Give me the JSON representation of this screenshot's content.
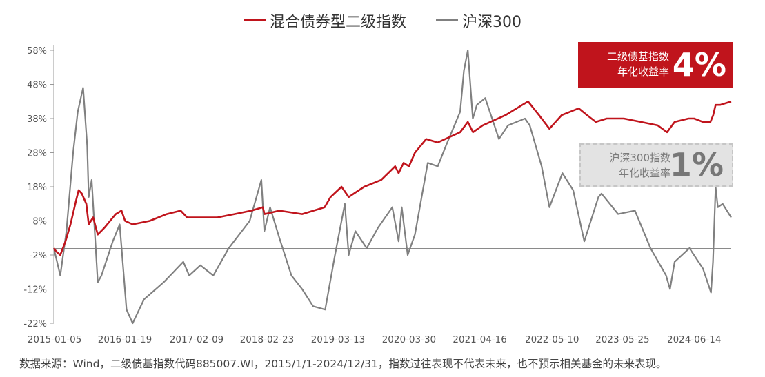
{
  "legend": [
    {
      "name": "混合债券型二级指数",
      "color": "#c0141c"
    },
    {
      "name": "沪深300",
      "color": "#808080"
    }
  ],
  "callouts": {
    "bond": {
      "label_line1": "二级债基指数",
      "label_line2": "年化收益率",
      "value": "4%",
      "bg": "#c0141c"
    },
    "csi": {
      "label_line1": "沪深300指数",
      "label_line2": "年化收益率",
      "value": "1%",
      "bg": "#e3e3e3"
    }
  },
  "footnote": "数据来源：Wind，二级债基指数代码885007.WI，2015/1/1-2024/12/31，指数过往表现不代表未来，也不预示相关基金的未来表现。",
  "chart_data": {
    "type": "line",
    "title": "",
    "xlabel": "",
    "ylabel": "",
    "ylim": [
      -22,
      58
    ],
    "xlim": [
      "2015-01-01",
      "2024-12-31"
    ],
    "y_ticks": [
      -22,
      -12,
      -2,
      8,
      18,
      28,
      38,
      48,
      58
    ],
    "y_tick_labels": [
      "-22%",
      "-12%",
      "-2%",
      "8%",
      "18%",
      "28%",
      "38%",
      "48%",
      "58%"
    ],
    "x_tick_labels": [
      "2015-01-05",
      "2016-01-19",
      "2017-02-09",
      "2018-02-23",
      "2019-03-13",
      "2020-03-30",
      "2021-04-16",
      "2022-05-10",
      "2023-05-25",
      "2024-06-14"
    ],
    "grid": false,
    "legend_position": "top-center",
    "series": [
      {
        "name": "混合债券型二级指数",
        "color": "#c0141c",
        "points": [
          [
            "2015-01-01",
            0
          ],
          [
            "2015-01-15",
            -1
          ],
          [
            "2015-02-05",
            -2
          ],
          [
            "2015-03-05",
            2
          ],
          [
            "2015-04-01",
            7
          ],
          [
            "2015-05-01",
            14
          ],
          [
            "2015-05-15",
            17
          ],
          [
            "2015-06-01",
            16
          ],
          [
            "2015-06-25",
            13
          ],
          [
            "2015-07-08",
            7
          ],
          [
            "2015-08-01",
            9
          ],
          [
            "2015-08-26",
            4
          ],
          [
            "2015-10-01",
            6
          ],
          [
            "2015-12-01",
            10
          ],
          [
            "2016-01-01",
            11
          ],
          [
            "2016-01-20",
            8
          ],
          [
            "2016-03-01",
            7
          ],
          [
            "2016-06-01",
            8
          ],
          [
            "2016-09-01",
            10
          ],
          [
            "2016-11-15",
            11
          ],
          [
            "2016-12-20",
            9
          ],
          [
            "2017-03-01",
            9
          ],
          [
            "2017-06-01",
            9
          ],
          [
            "2017-09-01",
            10
          ],
          [
            "2017-12-01",
            11
          ],
          [
            "2018-02-01",
            12
          ],
          [
            "2018-02-10",
            10
          ],
          [
            "2018-05-01",
            11
          ],
          [
            "2018-09-01",
            10
          ],
          [
            "2018-12-31",
            12
          ],
          [
            "2019-02-01",
            15
          ],
          [
            "2019-04-01",
            18
          ],
          [
            "2019-05-10",
            15
          ],
          [
            "2019-08-01",
            18
          ],
          [
            "2019-11-01",
            20
          ],
          [
            "2020-01-15",
            24
          ],
          [
            "2020-02-03",
            22
          ],
          [
            "2020-03-01",
            25
          ],
          [
            "2020-03-30",
            24
          ],
          [
            "2020-05-01",
            28
          ],
          [
            "2020-07-01",
            32
          ],
          [
            "2020-09-01",
            31
          ],
          [
            "2020-12-31",
            34
          ],
          [
            "2021-02-10",
            37
          ],
          [
            "2021-03-10",
            34
          ],
          [
            "2021-05-01",
            36
          ],
          [
            "2021-09-01",
            39
          ],
          [
            "2021-12-01",
            42
          ],
          [
            "2022-01-01",
            43
          ],
          [
            "2022-03-01",
            39
          ],
          [
            "2022-04-26",
            35
          ],
          [
            "2022-07-01",
            39
          ],
          [
            "2022-10-01",
            41
          ],
          [
            "2022-11-15",
            39
          ],
          [
            "2023-01-01",
            37
          ],
          [
            "2023-03-01",
            38
          ],
          [
            "2023-06-01",
            38
          ],
          [
            "2023-09-01",
            37
          ],
          [
            "2023-12-01",
            36
          ],
          [
            "2024-01-20",
            34
          ],
          [
            "2024-03-01",
            37
          ],
          [
            "2024-05-15",
            38
          ],
          [
            "2024-06-14",
            38
          ],
          [
            "2024-08-01",
            37
          ],
          [
            "2024-09-10",
            37
          ],
          [
            "2024-09-25",
            39
          ],
          [
            "2024-10-08",
            42
          ],
          [
            "2024-11-01",
            42
          ],
          [
            "2024-12-31",
            43
          ]
        ]
      },
      {
        "name": "沪深300",
        "color": "#808080",
        "points": [
          [
            "2015-01-01",
            0
          ],
          [
            "2015-02-05",
            -8
          ],
          [
            "2015-03-10",
            5
          ],
          [
            "2015-04-15",
            28
          ],
          [
            "2015-05-10",
            40
          ],
          [
            "2015-06-08",
            47
          ],
          [
            "2015-06-30",
            30
          ],
          [
            "2015-07-08",
            15
          ],
          [
            "2015-07-24",
            20
          ],
          [
            "2015-08-26",
            -10
          ],
          [
            "2015-09-15",
            -8
          ],
          [
            "2015-11-15",
            2
          ],
          [
            "2015-12-22",
            7
          ],
          [
            "2016-01-28",
            -18
          ],
          [
            "2016-03-01",
            -22
          ],
          [
            "2016-05-01",
            -15
          ],
          [
            "2016-08-15",
            -10
          ],
          [
            "2016-11-29",
            -4
          ],
          [
            "2016-12-31",
            -8
          ],
          [
            "2017-03-01",
            -5
          ],
          [
            "2017-05-10",
            -8
          ],
          [
            "2017-08-01",
            0
          ],
          [
            "2017-11-22",
            8
          ],
          [
            "2018-01-24",
            20
          ],
          [
            "2018-02-09",
            5
          ],
          [
            "2018-03-12",
            12
          ],
          [
            "2018-05-01",
            3
          ],
          [
            "2018-07-05",
            -8
          ],
          [
            "2018-09-01",
            -12
          ],
          [
            "2018-10-30",
            -17
          ],
          [
            "2019-01-03",
            -18
          ],
          [
            "2019-02-25",
            -2
          ],
          [
            "2019-04-19",
            13
          ],
          [
            "2019-05-10",
            -2
          ],
          [
            "2019-06-15",
            5
          ],
          [
            "2019-08-15",
            0
          ],
          [
            "2019-10-15",
            6
          ],
          [
            "2019-12-31",
            12
          ],
          [
            "2020-02-03",
            2
          ],
          [
            "2020-02-20",
            12
          ],
          [
            "2020-03-23",
            -2
          ],
          [
            "2020-05-01",
            4
          ],
          [
            "2020-07-09",
            25
          ],
          [
            "2020-09-01",
            24
          ],
          [
            "2020-10-15",
            30
          ],
          [
            "2020-12-31",
            40
          ],
          [
            "2021-01-20",
            52
          ],
          [
            "2021-02-10",
            58
          ],
          [
            "2021-03-09",
            38
          ],
          [
            "2021-03-31",
            42
          ],
          [
            "2021-05-15",
            44
          ],
          [
            "2021-07-28",
            32
          ],
          [
            "2021-09-15",
            36
          ],
          [
            "2021-12-15",
            38
          ],
          [
            "2022-01-10",
            36
          ],
          [
            "2022-03-15",
            24
          ],
          [
            "2022-04-26",
            12
          ],
          [
            "2022-07-05",
            22
          ],
          [
            "2022-09-01",
            17
          ],
          [
            "2022-10-31",
            2
          ],
          [
            "2023-01-15",
            15
          ],
          [
            "2023-02-01",
            16
          ],
          [
            "2023-05-01",
            10
          ],
          [
            "2023-07-31",
            11
          ],
          [
            "2023-10-23",
            0
          ],
          [
            "2024-01-15",
            -8
          ],
          [
            "2024-02-05",
            -12
          ],
          [
            "2024-03-01",
            -4
          ],
          [
            "2024-05-20",
            0
          ],
          [
            "2024-08-01",
            -6
          ],
          [
            "2024-09-13",
            -13
          ],
          [
            "2024-09-24",
            -4
          ],
          [
            "2024-10-08",
            18
          ],
          [
            "2024-10-20",
            12
          ],
          [
            "2024-11-15",
            13
          ],
          [
            "2024-12-31",
            9
          ]
        ]
      }
    ]
  }
}
